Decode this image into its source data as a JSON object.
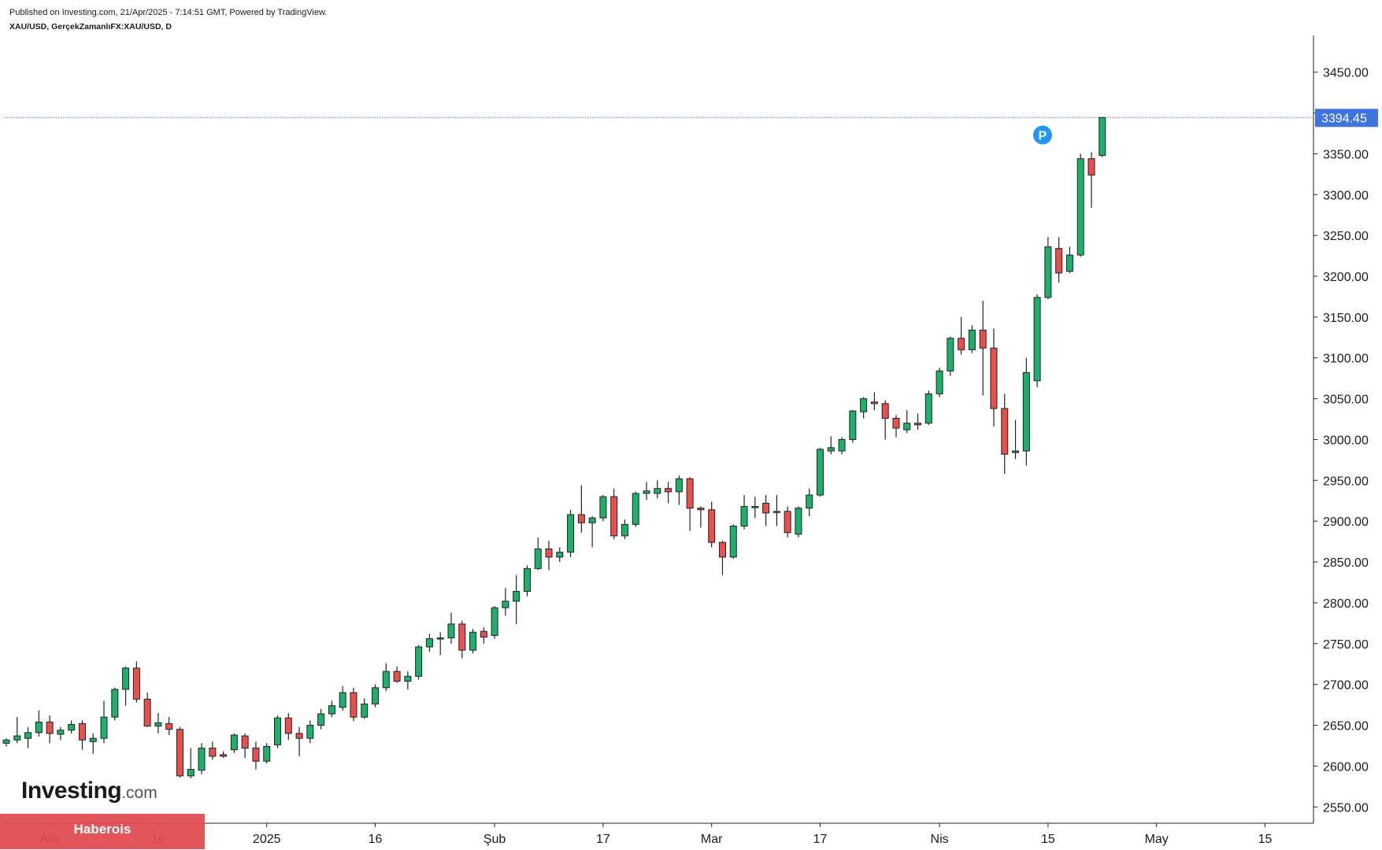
{
  "header": {
    "published": "Published on Investing.com, 21/Apr/2025 - 7:14:51 GMT, Powered by TradingView.",
    "symbol": "XAU/USD, GerçekZamanlıFX:XAU/USD, D"
  },
  "logo": {
    "main": "Investing",
    "suffix": ".com"
  },
  "badge": {
    "label": "Haberois"
  },
  "chart_data": {
    "type": "candlestick",
    "title": "",
    "xlabel": "",
    "ylabel": "",
    "ylim": [
      2530,
      3495
    ],
    "y_ticks": [
      "2550.00",
      "2600.00",
      "2650.00",
      "2700.00",
      "2750.00",
      "2800.00",
      "2850.00",
      "2900.00",
      "2950.00",
      "3000.00",
      "3050.00",
      "3100.00",
      "3150.00",
      "3200.00",
      "3250.00",
      "3300.00",
      "3350.00",
      "3400.00",
      "3450.00"
    ],
    "x_ticks": [
      {
        "label": "Ara",
        "index": 4
      },
      {
        "label": "16",
        "index": 14
      },
      {
        "label": "2025",
        "index": 24
      },
      {
        "label": "16",
        "index": 34
      },
      {
        "label": "Şub",
        "index": 45
      },
      {
        "label": "17",
        "index": 55
      },
      {
        "label": "Mar",
        "index": 65
      },
      {
        "label": "17",
        "index": 75
      },
      {
        "label": "Nis",
        "index": 86
      },
      {
        "label": "15",
        "index": 96
      },
      {
        "label": "May",
        "index": 106
      },
      {
        "label": "15",
        "index": 116
      }
    ],
    "last_price": {
      "value": 3394.45,
      "label": "3394.45"
    },
    "marker": {
      "label": "P",
      "index": 95.5,
      "value": 3373
    },
    "candles": [
      [
        2628,
        2634,
        2624,
        2632
      ],
      [
        2632,
        2660,
        2628,
        2637
      ],
      [
        2634,
        2648,
        2622,
        2641
      ],
      [
        2641,
        2668,
        2636,
        2654
      ],
      [
        2654,
        2662,
        2628,
        2640
      ],
      [
        2639,
        2648,
        2632,
        2644
      ],
      [
        2644,
        2656,
        2640,
        2651
      ],
      [
        2652,
        2656,
        2620,
        2632
      ],
      [
        2630,
        2640,
        2615,
        2634
      ],
      [
        2634,
        2680,
        2628,
        2660
      ],
      [
        2660,
        2696,
        2656,
        2694
      ],
      [
        2694,
        2722,
        2674,
        2720
      ],
      [
        2720,
        2728,
        2678,
        2682
      ],
      [
        2682,
        2690,
        2648,
        2649
      ],
      [
        2649,
        2665,
        2640,
        2653
      ],
      [
        2652,
        2660,
        2638,
        2645
      ],
      [
        2645,
        2648,
        2586,
        2588
      ],
      [
        2588,
        2622,
        2585,
        2596
      ],
      [
        2595,
        2628,
        2590,
        2622
      ],
      [
        2622,
        2630,
        2608,
        2612
      ],
      [
        2614,
        2618,
        2610,
        2612
      ],
      [
        2620,
        2640,
        2616,
        2638
      ],
      [
        2637,
        2640,
        2610,
        2622
      ],
      [
        2622,
        2630,
        2596,
        2606
      ],
      [
        2606,
        2628,
        2603,
        2624
      ],
      [
        2626,
        2662,
        2622,
        2659
      ],
      [
        2659,
        2665,
        2632,
        2640
      ],
      [
        2640,
        2648,
        2612,
        2634
      ],
      [
        2634,
        2656,
        2628,
        2650
      ],
      [
        2650,
        2670,
        2645,
        2664
      ],
      [
        2664,
        2680,
        2660,
        2674
      ],
      [
        2672,
        2698,
        2668,
        2690
      ],
      [
        2690,
        2696,
        2655,
        2660
      ],
      [
        2660,
        2683,
        2658,
        2676
      ],
      [
        2676,
        2700,
        2672,
        2696
      ],
      [
        2696,
        2726,
        2692,
        2716
      ],
      [
        2716,
        2722,
        2702,
        2704
      ],
      [
        2704,
        2716,
        2694,
        2710
      ],
      [
        2710,
        2748,
        2706,
        2746
      ],
      [
        2746,
        2762,
        2740,
        2756
      ],
      [
        2756,
        2764,
        2736,
        2757
      ],
      [
        2757,
        2788,
        2750,
        2774
      ],
      [
        2774,
        2778,
        2732,
        2742
      ],
      [
        2742,
        2768,
        2738,
        2764
      ],
      [
        2765,
        2770,
        2750,
        2758
      ],
      [
        2760,
        2796,
        2756,
        2794
      ],
      [
        2794,
        2818,
        2784,
        2802
      ],
      [
        2802,
        2834,
        2774,
        2814
      ],
      [
        2814,
        2846,
        2808,
        2842
      ],
      [
        2842,
        2880,
        2840,
        2866
      ],
      [
        2866,
        2876,
        2840,
        2856
      ],
      [
        2856,
        2868,
        2850,
        2862
      ],
      [
        2862,
        2914,
        2856,
        2908
      ],
      [
        2908,
        2944,
        2886,
        2898
      ],
      [
        2898,
        2906,
        2868,
        2904
      ],
      [
        2904,
        2932,
        2900,
        2930
      ],
      [
        2930,
        2940,
        2878,
        2882
      ],
      [
        2882,
        2902,
        2878,
        2896
      ],
      [
        2896,
        2936,
        2893,
        2934
      ],
      [
        2934,
        2948,
        2926,
        2937
      ],
      [
        2934,
        2950,
        2928,
        2940
      ],
      [
        2940,
        2948,
        2922,
        2936
      ],
      [
        2936,
        2956,
        2920,
        2952
      ],
      [
        2952,
        2954,
        2888,
        2916
      ],
      [
        2916,
        2918,
        2892,
        2914
      ],
      [
        2914,
        2924,
        2868,
        2874
      ],
      [
        2874,
        2876,
        2834,
        2856
      ],
      [
        2856,
        2896,
        2854,
        2894
      ],
      [
        2894,
        2932,
        2890,
        2918
      ],
      [
        2918,
        2930,
        2904,
        2918
      ],
      [
        2922,
        2932,
        2894,
        2910
      ],
      [
        2912,
        2932,
        2894,
        2912
      ],
      [
        2912,
        2918,
        2880,
        2886
      ],
      [
        2884,
        2918,
        2880,
        2916
      ],
      [
        2916,
        2940,
        2906,
        2932
      ],
      [
        2932,
        2990,
        2930,
        2988
      ],
      [
        2986,
        3004,
        2982,
        2990
      ],
      [
        2986,
        3003,
        2982,
        3000
      ],
      [
        3000,
        3036,
        2996,
        3035
      ],
      [
        3034,
        3052,
        3026,
        3050
      ],
      [
        3046,
        3058,
        3036,
        3044
      ],
      [
        3044,
        3048,
        3000,
        3026
      ],
      [
        3026,
        3030,
        3003,
        3014
      ],
      [
        3012,
        3036,
        3008,
        3020
      ],
      [
        3020,
        3032,
        3012,
        3018
      ],
      [
        3020,
        3060,
        3018,
        3056
      ],
      [
        3056,
        3088,
        3052,
        3084
      ],
      [
        3084,
        3126,
        3078,
        3124
      ],
      [
        3124,
        3150,
        3104,
        3110
      ],
      [
        3110,
        3140,
        3106,
        3134
      ],
      [
        3134,
        3170,
        3054,
        3112
      ],
      [
        3112,
        3136,
        3016,
        3038
      ],
      [
        3038,
        3056,
        2958,
        2982
      ],
      [
        2984,
        3024,
        2976,
        2986
      ],
      [
        2986,
        3100,
        2968,
        3082
      ],
      [
        3072,
        3178,
        3064,
        3174
      ],
      [
        3174,
        3248,
        3172,
        3236
      ],
      [
        3234,
        3248,
        3192,
        3204
      ],
      [
        3206,
        3236,
        3204,
        3226
      ],
      [
        3226,
        3350,
        3224,
        3344
      ],
      [
        3344,
        3352,
        3284,
        3324
      ],
      [
        3348,
        3394.45,
        3346,
        3394.45
      ]
    ]
  }
}
